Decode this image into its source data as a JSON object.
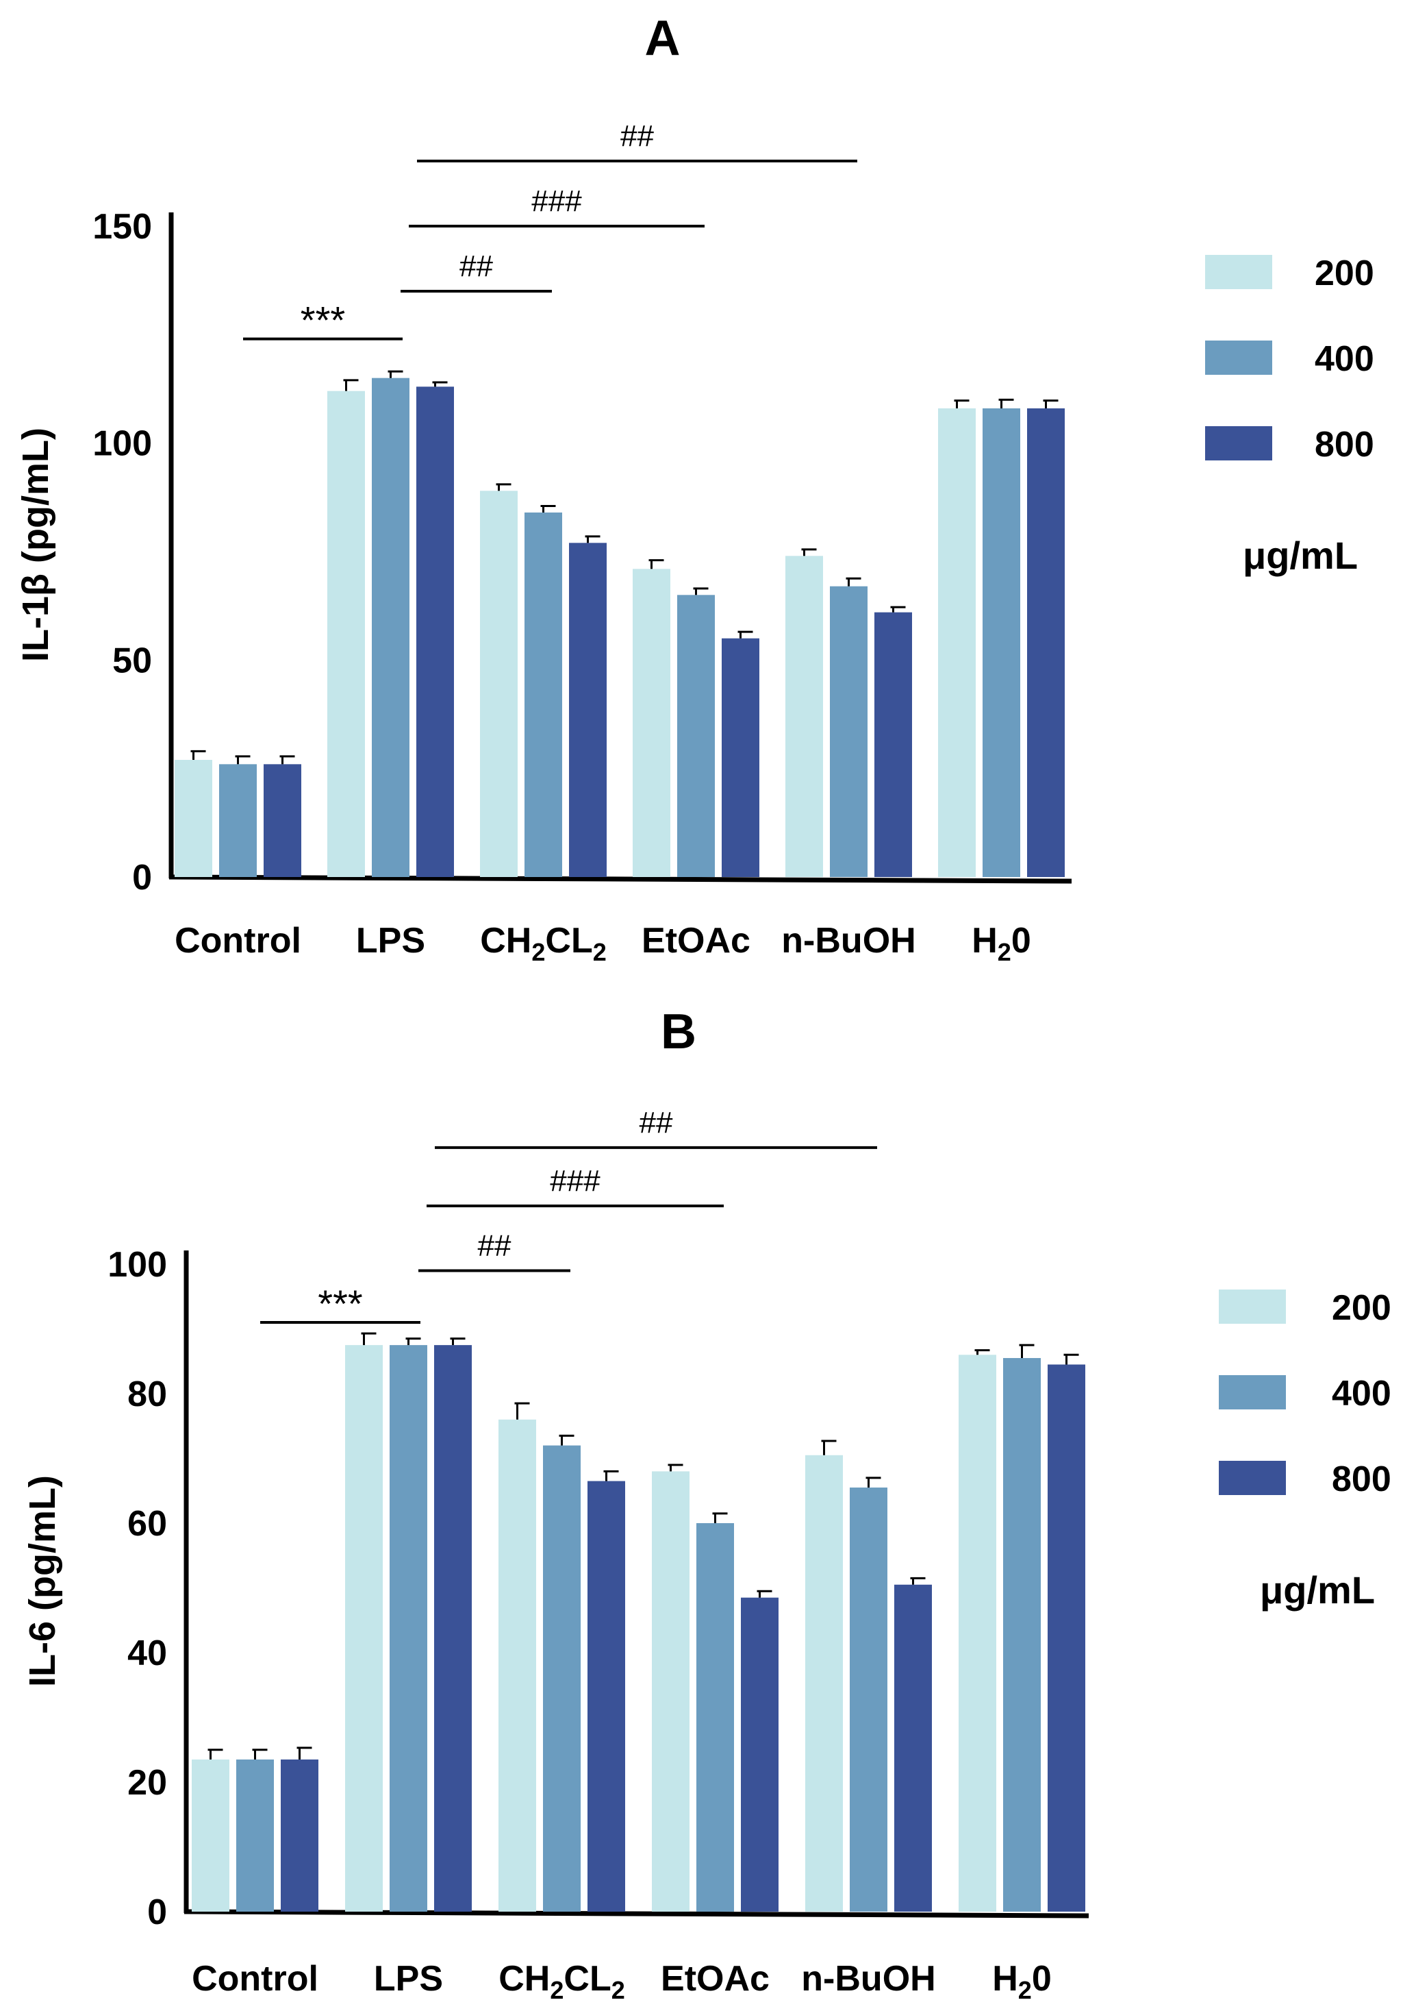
{
  "colors": {
    "200": "#c4e6ea",
    "400": "#6b9cbf",
    "800": "#3a5297"
  },
  "chart_data": [
    {
      "type": "bar",
      "title": "A",
      "ylabel": "IL-1β (pg/mL)",
      "ylim": [
        0,
        150
      ],
      "yticks": [
        0,
        50,
        100,
        150
      ],
      "categories": [
        {
          "main": "Control",
          "sub": "",
          "tail": ""
        },
        {
          "main": "LPS",
          "sub": "",
          "tail": ""
        },
        {
          "main": "CH",
          "sub": "2",
          "tail": "CL",
          "sub2": "2"
        },
        {
          "main": "EtOAc",
          "sub": "",
          "tail": ""
        },
        {
          "main": "n-BuOH",
          "sub": "",
          "tail": ""
        },
        {
          "main": "H",
          "sub": "2",
          "tail": "0"
        }
      ],
      "series": [
        {
          "name": "200",
          "values": [
            27,
            112,
            89,
            71,
            74,
            108
          ],
          "errors": [
            2,
            2.5,
            1.5,
            2,
            1.5,
            1.8
          ]
        },
        {
          "name": "400",
          "values": [
            26,
            115,
            84,
            65,
            67,
            108
          ],
          "errors": [
            1.8,
            1.5,
            1.5,
            1.5,
            1.8,
            2
          ]
        },
        {
          "name": "800",
          "values": [
            26,
            113,
            77,
            55,
            61,
            108
          ],
          "errors": [
            1.8,
            1,
            1.5,
            1.5,
            1.2,
            1.8
          ]
        }
      ],
      "legend_unit": "μg/mL",
      "annotations": [
        {
          "text": "***",
          "from_cat": 0,
          "to_cat": 1,
          "y": 124
        },
        {
          "text": "##",
          "from_cat": 1,
          "to_cat": 2,
          "y": 135
        },
        {
          "text": "###",
          "from_cat": 1,
          "to_cat": 3,
          "y": 150
        },
        {
          "text": "##",
          "from_cat": 1,
          "to_cat": 4,
          "y": 165
        }
      ]
    },
    {
      "type": "bar",
      "title": "B",
      "ylabel": "IL-6 (pg/mL)",
      "ylim": [
        0,
        100
      ],
      "yticks": [
        0,
        20,
        40,
        60,
        80,
        100
      ],
      "categories": [
        {
          "main": "Control",
          "sub": "",
          "tail": ""
        },
        {
          "main": "LPS",
          "sub": "",
          "tail": ""
        },
        {
          "main": "CH",
          "sub": "2",
          "tail": "CL",
          "sub2": "2"
        },
        {
          "main": "EtOAc",
          "sub": "",
          "tail": ""
        },
        {
          "main": "n-BuOH",
          "sub": "",
          "tail": ""
        },
        {
          "main": "H",
          "sub": "2",
          "tail": "0"
        }
      ],
      "series": [
        {
          "name": "200",
          "values": [
            23.5,
            87.5,
            76,
            68,
            70.5,
            86
          ],
          "errors": [
            1.5,
            1.8,
            2.5,
            1,
            2.2,
            0.7
          ]
        },
        {
          "name": "400",
          "values": [
            23.5,
            87.5,
            72,
            60,
            65.5,
            85.5
          ],
          "errors": [
            1.5,
            1,
            1.5,
            1.5,
            1.5,
            2
          ]
        },
        {
          "name": "800",
          "values": [
            23.5,
            87.5,
            66.5,
            48.5,
            50.5,
            84.5
          ],
          "errors": [
            1.8,
            1,
            1.5,
            1,
            1,
            1.5
          ]
        }
      ],
      "legend_unit": "μg/mL",
      "annotations": [
        {
          "text": "***",
          "from_cat": 0,
          "to_cat": 1,
          "y": 91
        },
        {
          "text": "##",
          "from_cat": 1,
          "to_cat": 2,
          "y": 99
        },
        {
          "text": "###",
          "from_cat": 1,
          "to_cat": 3,
          "y": 109
        },
        {
          "text": "##",
          "from_cat": 1,
          "to_cat": 4,
          "y": 118
        }
      ]
    }
  ]
}
